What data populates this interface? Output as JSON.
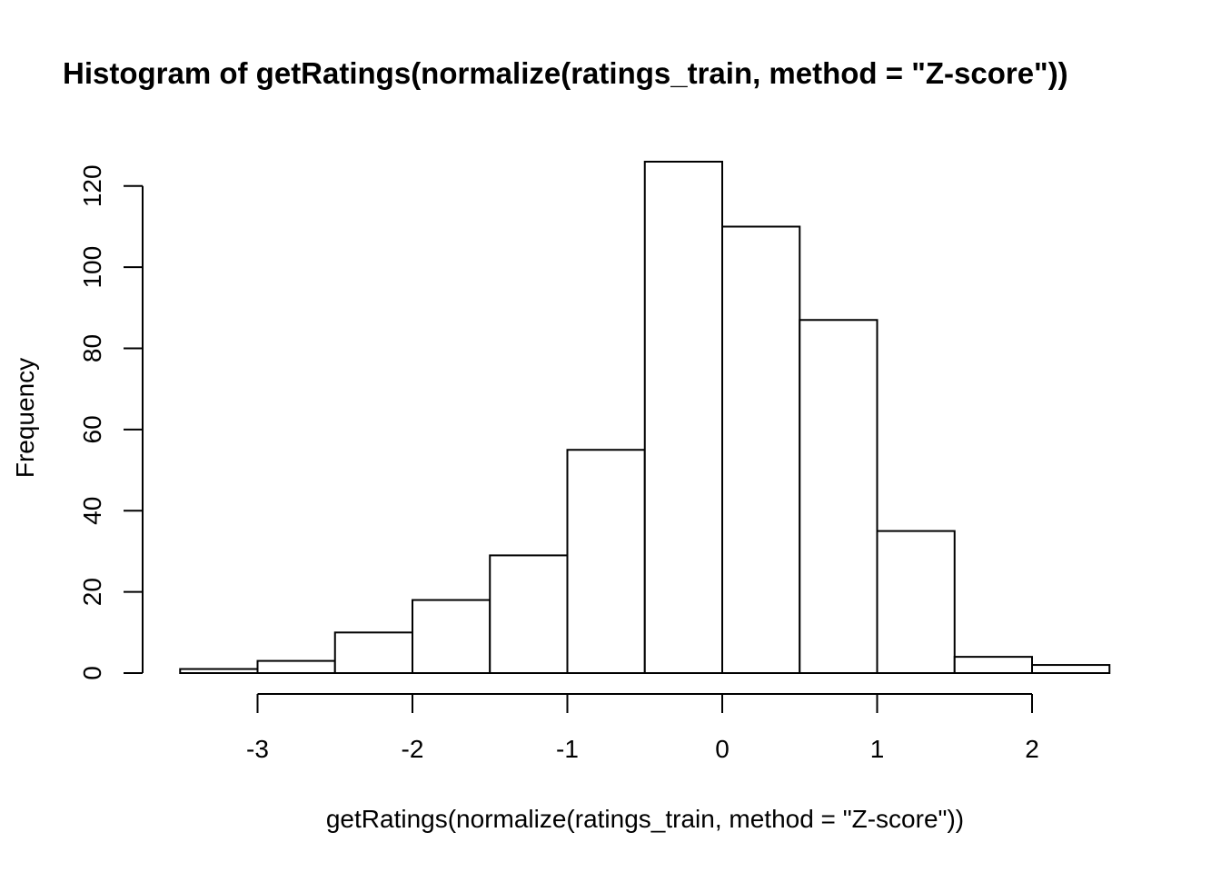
{
  "chart_data": {
    "type": "bar",
    "title": "Histogram of getRatings(normalize(ratings_train, method = \"Z-score\"))",
    "xlabel": "getRatings(normalize(ratings_train, method = \"Z-score\"))",
    "ylabel": "Frequency",
    "bins": [
      {
        "x0": -3.5,
        "x1": -3.0,
        "count": 1
      },
      {
        "x0": -3.0,
        "x1": -2.5,
        "count": 3
      },
      {
        "x0": -2.5,
        "x1": -2.0,
        "count": 10
      },
      {
        "x0": -2.0,
        "x1": -1.5,
        "count": 18
      },
      {
        "x0": -1.5,
        "x1": -1.0,
        "count": 29
      },
      {
        "x0": -1.0,
        "x1": -0.5,
        "count": 55
      },
      {
        "x0": -0.5,
        "x1": 0.0,
        "count": 126
      },
      {
        "x0": 0.0,
        "x1": 0.5,
        "count": 110
      },
      {
        "x0": 0.5,
        "x1": 1.0,
        "count": 87
      },
      {
        "x0": 1.0,
        "x1": 1.5,
        "count": 35
      },
      {
        "x0": 1.5,
        "x1": 2.0,
        "count": 4
      },
      {
        "x0": 2.0,
        "x1": 2.5,
        "count": 2
      }
    ],
    "xticks": [
      -3,
      -2,
      -1,
      0,
      1,
      2
    ],
    "xtick_labels": [
      "-3",
      "-2",
      "-1",
      "0",
      "1",
      "2"
    ],
    "yticks": [
      0,
      20,
      40,
      60,
      80,
      100,
      120
    ],
    "ytick_labels": [
      "0",
      "20",
      "40",
      "60",
      "80",
      "100",
      "120"
    ],
    "xlim": [
      -3.5,
      2.5
    ],
    "ylim": [
      0,
      126
    ],
    "grid": false,
    "colors": {
      "bar_fill": "#ffffff",
      "bar_stroke": "#000000"
    }
  }
}
